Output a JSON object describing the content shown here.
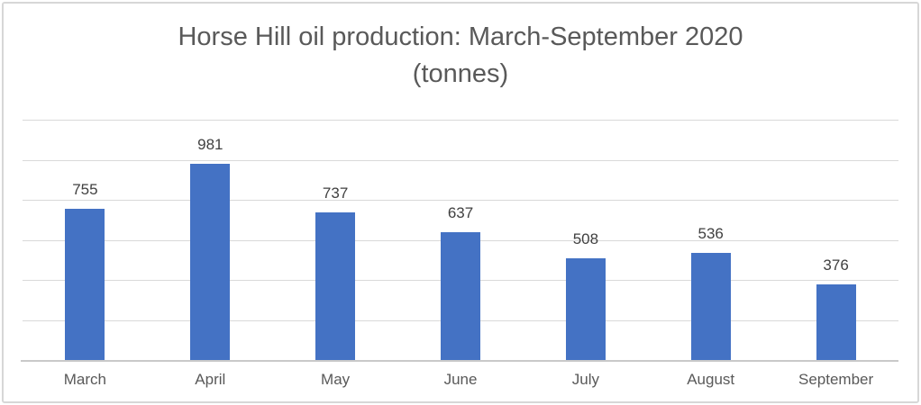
{
  "chart_data": {
    "type": "bar",
    "title": "Horse Hill oil production: March-September 2020 (tonnes)",
    "title_lines": [
      "Horse Hill oil production: March-September 2020",
      "(tonnes)"
    ],
    "categories": [
      "March",
      "April",
      "May",
      "June",
      "July",
      "August",
      "September"
    ],
    "values": [
      755,
      981,
      737,
      637,
      508,
      536,
      376
    ],
    "data_labels": [
      "755",
      "981",
      "737",
      "637",
      "508",
      "536",
      "376"
    ],
    "xlabel": "",
    "ylabel": "",
    "ylim": [
      0,
      1200
    ],
    "grid_step": 200,
    "gridlines": "horizontal",
    "legend_position": "none",
    "colors": {
      "bar": "#4472C4",
      "gridline": "#D9D9D9",
      "axis_line": "#C9C9C9",
      "title_text": "#595959",
      "data_label_text": "#404040",
      "category_label_text": "#595959",
      "chart_border": "#D7D7D7",
      "background": "#FFFFFF"
    }
  }
}
